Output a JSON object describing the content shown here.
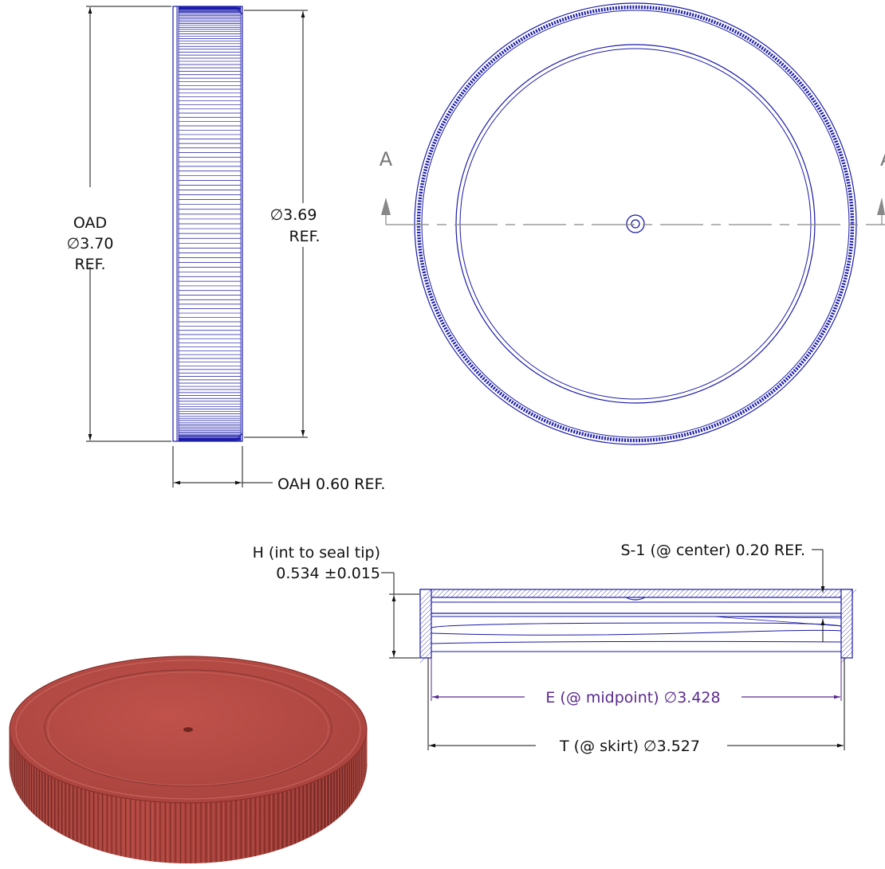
{
  "colors": {
    "line_blue": "#1a1aa8",
    "dim_black": "#111111",
    "dim_purple": "#5a2a8c",
    "section_gray": "#8a8a8a",
    "cap_red": "#b4443f",
    "cap_red_dark": "#7e2b28"
  },
  "side_view": {
    "oad_line1": "OAD",
    "oad_line2": "∅3.70",
    "oad_line3": "REF.",
    "dia_line1": "∅3.69",
    "dia_line2": "REF.",
    "oah_label": "OAH 0.60 REF."
  },
  "top_view": {
    "section_left": "A",
    "section_right": "A"
  },
  "section_view": {
    "h_line1": "H (int to seal tip)",
    "h_line2": "0.534 ±0.015",
    "s1_label": "S-1 (@ center) 0.20 REF.",
    "e_label": "E (@ midpoint)  ∅3.428",
    "t_label": "T (@ skirt)  ∅3.527"
  },
  "iso_view": {
    "icon": "cap-3d-render-icon"
  }
}
